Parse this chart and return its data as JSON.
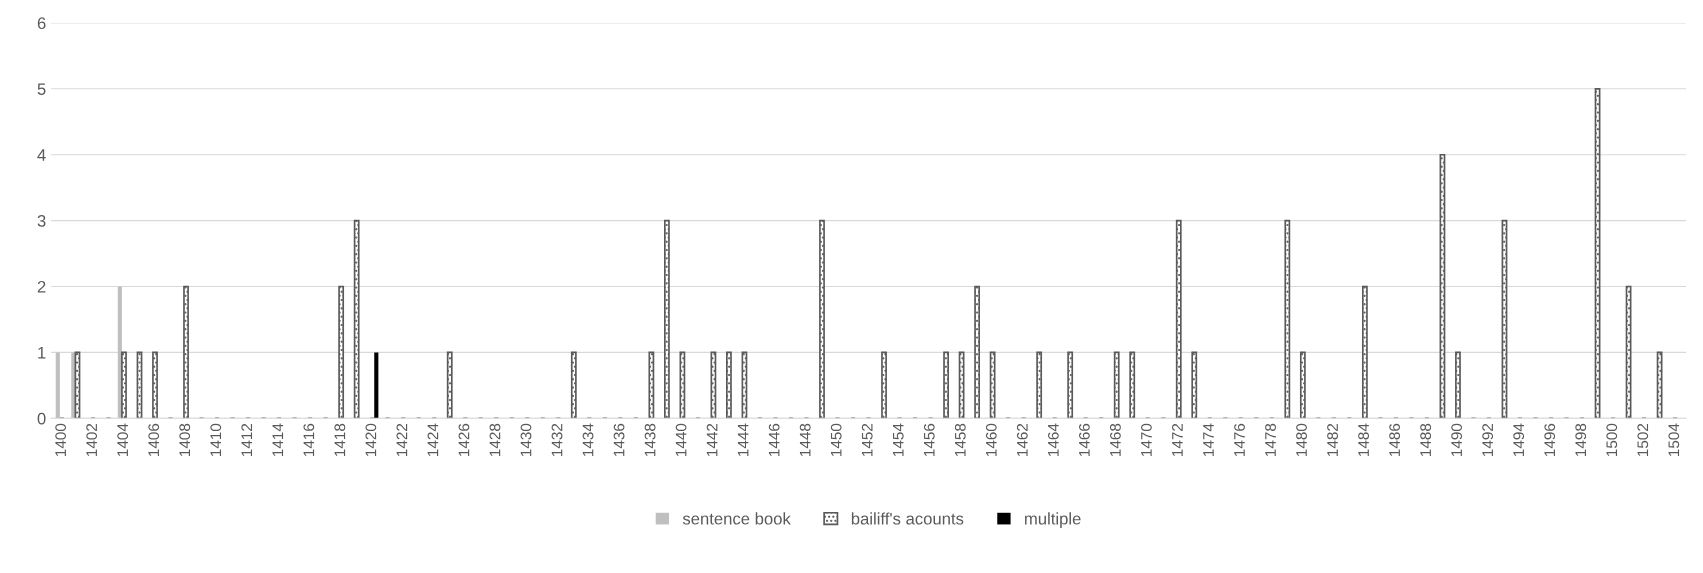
{
  "chart_data": {
    "type": "bar",
    "categories": [
      "1400",
      null,
      "1402",
      null,
      "1404",
      null,
      "1406",
      null,
      "1408",
      null,
      "1410",
      null,
      "1412",
      null,
      "1414",
      null,
      "1416",
      null,
      "1418",
      null,
      "1420",
      null,
      "1422",
      null,
      "1424",
      null,
      "1426",
      null,
      "1428",
      null,
      "1430",
      null,
      "1432",
      null,
      "1434",
      null,
      "1436",
      null,
      "1438",
      null,
      "1440",
      null,
      "1442",
      null,
      "1444",
      null,
      "1446",
      null,
      "1448",
      null,
      "1450",
      null,
      "1452",
      null,
      "1454",
      null,
      "1456",
      null,
      "1458",
      null,
      "1460",
      null,
      "1462",
      null,
      "1464",
      null,
      "1466",
      null,
      "1468",
      null,
      "1470",
      null,
      "1472",
      null,
      "1474",
      null,
      "1476",
      null,
      "1478",
      null,
      "1480",
      null,
      "1482",
      null,
      "1484",
      null,
      "1486",
      null,
      "1488",
      null,
      "1490",
      null,
      "1492",
      null,
      "1494",
      null,
      "1496",
      null,
      "1498",
      null,
      "1500",
      null,
      "1502",
      null,
      "1504"
    ],
    "series": [
      {
        "name": "sentence book",
        "color": "#bfbfbf",
        "values": [
          1,
          1,
          0,
          0,
          2,
          0,
          0,
          0,
          0,
          0,
          0,
          0,
          0,
          0,
          0,
          0,
          0,
          0,
          0,
          0,
          0,
          0,
          0,
          0,
          0,
          0,
          0,
          0,
          0,
          0,
          0,
          0,
          0,
          0,
          0,
          0,
          0,
          0,
          0,
          0,
          0,
          0,
          0,
          0,
          0,
          0,
          0,
          0,
          0,
          0,
          0,
          0,
          0,
          0,
          0,
          0,
          0,
          0,
          0,
          0,
          0,
          0,
          0,
          0,
          0,
          0,
          0,
          0,
          0,
          0,
          0,
          0,
          0,
          0,
          0,
          0,
          0,
          0,
          0,
          0,
          0,
          0,
          0,
          0,
          0,
          0,
          0,
          0,
          0,
          0,
          0,
          0,
          0,
          0,
          0,
          0,
          0,
          0,
          0,
          0,
          0,
          0,
          0,
          0,
          0
        ]
      },
      {
        "name": "bailiff's acounts",
        "color": "#595959",
        "values": [
          0,
          1,
          0,
          0,
          1,
          1,
          1,
          0,
          2,
          0,
          0,
          0,
          0,
          0,
          0,
          0,
          0,
          0,
          2,
          3,
          0,
          0,
          0,
          0,
          0,
          1,
          0,
          0,
          0,
          0,
          0,
          0,
          0,
          1,
          0,
          0,
          0,
          0,
          1,
          3,
          1,
          0,
          1,
          1,
          1,
          0,
          0,
          0,
          0,
          3,
          0,
          0,
          0,
          1,
          0,
          0,
          0,
          1,
          1,
          2,
          1,
          0,
          0,
          1,
          0,
          1,
          0,
          0,
          1,
          1,
          0,
          0,
          3,
          1,
          0,
          0,
          0,
          0,
          0,
          3,
          1,
          0,
          0,
          0,
          2,
          0,
          0,
          0,
          0,
          4,
          1,
          0,
          0,
          3,
          0,
          0,
          0,
          0,
          0,
          5,
          0,
          2,
          0,
          1,
          0
        ]
      },
      {
        "name": "multiple",
        "color": "#000000",
        "values": [
          0,
          0,
          0,
          0,
          0,
          0,
          0,
          0,
          0,
          0,
          0,
          0,
          0,
          0,
          0,
          0,
          0,
          0,
          0,
          0,
          1,
          0,
          0,
          0,
          0,
          0,
          0,
          0,
          0,
          0,
          0,
          0,
          0,
          0,
          0,
          0,
          0,
          0,
          0,
          0,
          0,
          0,
          0,
          0,
          0,
          0,
          0,
          0,
          0,
          0,
          0,
          0,
          0,
          0,
          0,
          0,
          0,
          0,
          0,
          0,
          0,
          0,
          0,
          0,
          0,
          0,
          0,
          0,
          0,
          0,
          0,
          0,
          0,
          0,
          0,
          0,
          0,
          0,
          0,
          0,
          0,
          0,
          0,
          0,
          0,
          0,
          0,
          0,
          0,
          0,
          0,
          0,
          0,
          0,
          0,
          0,
          0,
          0,
          0,
          0,
          0,
          0,
          0,
          0,
          0
        ]
      }
    ],
    "ylim": [
      0,
      6
    ],
    "yticks": [
      0,
      1,
      2,
      3,
      4,
      5,
      6
    ],
    "grid": "y",
    "legend": "bottom"
  }
}
